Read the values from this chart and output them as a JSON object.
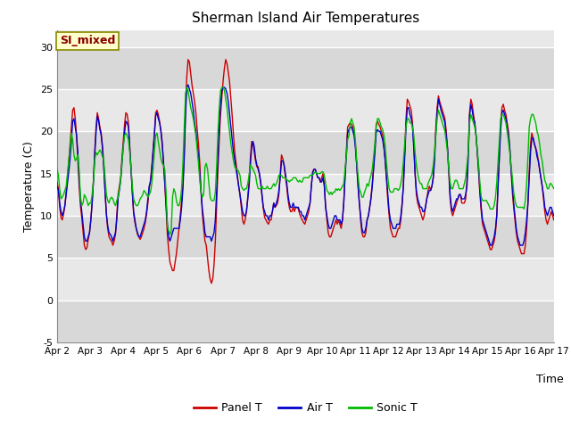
{
  "title": "Sherman Island Air Temperatures",
  "xlabel": "Time",
  "ylabel": "Temperature (C)",
  "ylim": [
    -5,
    32
  ],
  "yticks": [
    -5,
    0,
    5,
    10,
    15,
    20,
    25,
    30
  ],
  "xlim": [
    0,
    360
  ],
  "xtick_labels": [
    "Apr 2",
    "Apr 3",
    "Apr 4",
    "Apr 5",
    "Apr 6",
    "Apr 7",
    "Apr 8",
    "Apr 9",
    "Apr 10",
    "Apr 11",
    "Apr 12",
    "Apr 13",
    "Apr 14",
    "Apr 15",
    "Apr 16",
    "Apr 17"
  ],
  "xtick_positions": [
    0,
    24,
    48,
    72,
    96,
    120,
    144,
    168,
    192,
    216,
    240,
    264,
    288,
    312,
    336,
    360
  ],
  "colors": {
    "panel_t": "#cc0000",
    "air_t": "#0000cc",
    "sonic_t": "#00bb00",
    "bg_light": "#e8e8e8",
    "bg_dark": "#d0d0d0",
    "grid_line": "#ffffff",
    "annotation_bg": "#ffffcc",
    "annotation_border": "#888800",
    "annotation_text": "#880000"
  },
  "annotation": "SI_mixed",
  "legend_labels": [
    "Panel T",
    "Air T",
    "Sonic T"
  ],
  "panel_t": [
    14.0,
    13.2,
    11.0,
    9.8,
    9.5,
    10.2,
    11.2,
    12.8,
    14.5,
    16.5,
    18.5,
    20.5,
    22.5,
    22.8,
    21.5,
    19.5,
    16.5,
    13.5,
    11.2,
    9.8,
    8.2,
    6.5,
    6.0,
    6.2,
    7.2,
    8.0,
    9.5,
    11.5,
    14.2,
    17.5,
    20.5,
    22.2,
    21.5,
    20.5,
    19.8,
    18.2,
    15.8,
    12.8,
    10.2,
    8.5,
    7.5,
    7.2,
    7.0,
    6.5,
    7.0,
    7.8,
    10.0,
    12.5,
    13.5,
    14.5,
    16.8,
    18.8,
    20.8,
    22.2,
    22.0,
    21.0,
    18.2,
    15.5,
    12.8,
    10.2,
    9.2,
    8.5,
    7.8,
    7.5,
    7.2,
    7.5,
    8.0,
    8.5,
    9.2,
    10.2,
    11.5,
    13.2,
    14.2,
    15.8,
    17.8,
    19.8,
    22.2,
    22.5,
    22.0,
    21.2,
    20.2,
    18.8,
    16.2,
    13.8,
    11.0,
    7.8,
    6.0,
    4.5,
    4.0,
    3.5,
    3.5,
    4.5,
    5.5,
    7.0,
    8.5,
    10.2,
    11.8,
    13.8,
    17.5,
    22.5,
    26.5,
    28.5,
    28.2,
    26.8,
    25.5,
    24.5,
    23.5,
    22.2,
    20.2,
    18.5,
    16.2,
    12.8,
    10.2,
    8.5,
    7.0,
    6.5,
    5.0,
    3.5,
    2.5,
    2.0,
    2.5,
    4.2,
    7.0,
    11.2,
    15.5,
    19.0,
    22.0,
    24.0,
    26.0,
    27.5,
    28.5,
    28.0,
    27.0,
    25.8,
    23.8,
    21.8,
    19.5,
    17.5,
    16.2,
    14.8,
    13.5,
    12.5,
    11.0,
    9.5,
    9.0,
    9.5,
    10.5,
    12.2,
    14.2,
    16.8,
    18.8,
    18.5,
    17.5,
    16.5,
    15.8,
    15.8,
    14.8,
    13.8,
    12.2,
    10.8,
    9.8,
    9.5,
    9.2,
    9.0,
    9.5,
    9.5,
    10.5,
    11.5,
    11.0,
    11.2,
    11.5,
    12.5,
    14.8,
    17.2,
    16.8,
    16.0,
    14.5,
    13.5,
    12.0,
    11.0,
    10.5,
    10.5,
    11.0,
    10.5,
    11.0,
    11.0,
    10.8,
    10.2,
    9.8,
    9.5,
    9.2,
    9.0,
    9.5,
    10.0,
    10.5,
    11.5,
    13.5,
    15.2,
    15.5,
    15.5,
    15.0,
    14.5,
    14.5,
    14.0,
    14.5,
    15.0,
    13.8,
    11.2,
    9.5,
    8.0,
    7.5,
    7.5,
    8.0,
    8.5,
    9.0,
    9.5,
    9.0,
    9.5,
    9.0,
    8.5,
    9.5,
    11.5,
    14.8,
    17.5,
    20.5,
    20.8,
    21.0,
    20.8,
    20.5,
    19.8,
    18.5,
    16.0,
    13.8,
    11.5,
    9.5,
    8.0,
    7.5,
    7.5,
    8.0,
    9.5,
    10.0,
    11.0,
    12.2,
    13.8,
    15.8,
    18.0,
    20.8,
    21.2,
    20.8,
    20.5,
    20.0,
    19.5,
    18.2,
    16.5,
    14.2,
    11.8,
    10.0,
    8.5,
    8.0,
    7.5,
    7.5,
    7.5,
    8.0,
    8.5,
    8.5,
    9.5,
    11.2,
    13.8,
    17.5,
    21.5,
    23.8,
    23.5,
    23.0,
    22.5,
    21.0,
    18.5,
    15.0,
    12.5,
    11.5,
    11.0,
    10.5,
    10.0,
    9.5,
    10.0,
    11.0,
    12.0,
    13.0,
    13.5,
    13.0,
    13.5,
    14.5,
    17.2,
    20.5,
    22.8,
    24.2,
    23.5,
    23.0,
    22.5,
    22.0,
    21.5,
    20.0,
    18.0,
    15.0,
    12.0,
    10.5,
    10.0,
    10.5,
    11.0,
    11.5,
    12.0,
    12.5,
    12.5,
    11.5,
    11.5,
    11.5,
    12.0,
    14.2,
    17.8,
    22.2,
    23.8,
    23.2,
    22.0,
    21.0,
    19.5,
    17.5,
    15.0,
    12.5,
    10.5,
    9.0,
    8.5,
    8.0,
    7.5,
    7.0,
    6.5,
    6.0,
    6.0,
    6.5,
    7.0,
    8.0,
    10.2,
    13.8,
    17.5,
    21.0,
    22.8,
    23.2,
    22.5,
    22.0,
    21.0,
    20.0,
    18.0,
    15.5,
    12.8,
    11.0,
    9.5,
    8.0,
    7.0,
    6.5,
    6.0,
    5.5,
    5.5,
    5.5,
    6.5,
    8.5,
    11.5,
    15.2,
    18.5,
    19.8,
    19.2,
    18.5,
    18.0,
    17.5,
    16.5,
    15.5,
    14.5,
    13.5,
    12.0,
    10.5,
    9.5,
    9.0,
    9.5,
    10.0,
    10.5,
    10.0,
    9.5
  ],
  "air_t": [
    13.5,
    13.0,
    11.5,
    10.5,
    10.0,
    10.5,
    11.2,
    12.5,
    13.8,
    15.2,
    16.8,
    18.8,
    21.2,
    21.5,
    20.5,
    19.5,
    17.5,
    14.5,
    12.0,
    10.5,
    9.0,
    7.5,
    7.0,
    7.0,
    7.5,
    8.0,
    9.5,
    11.5,
    14.0,
    17.2,
    19.8,
    21.8,
    21.2,
    20.2,
    19.5,
    18.0,
    15.8,
    12.8,
    10.2,
    8.8,
    8.0,
    7.8,
    7.5,
    7.0,
    7.5,
    8.0,
    9.5,
    12.0,
    13.0,
    14.2,
    16.2,
    18.2,
    19.8,
    21.2,
    21.0,
    20.5,
    18.0,
    15.5,
    12.8,
    10.5,
    9.5,
    8.5,
    8.0,
    7.5,
    7.5,
    8.0,
    8.5,
    9.0,
    9.5,
    10.5,
    12.0,
    13.5,
    14.0,
    15.5,
    17.5,
    19.5,
    21.8,
    22.2,
    21.5,
    21.0,
    20.0,
    18.5,
    16.5,
    14.0,
    11.5,
    9.0,
    7.5,
    7.0,
    7.5,
    8.0,
    8.5,
    8.5,
    8.5,
    8.5,
    8.5,
    9.5,
    11.0,
    13.2,
    16.8,
    21.8,
    25.2,
    25.5,
    25.0,
    24.5,
    23.5,
    22.5,
    21.0,
    20.0,
    18.5,
    17.0,
    15.0,
    12.8,
    10.8,
    9.5,
    8.0,
    7.5,
    7.5,
    7.5,
    7.5,
    7.0,
    7.5,
    8.0,
    9.5,
    13.0,
    17.0,
    20.5,
    23.2,
    24.8,
    25.2,
    25.2,
    25.0,
    24.5,
    23.5,
    22.0,
    20.5,
    19.0,
    17.5,
    16.5,
    15.5,
    14.5,
    13.5,
    12.5,
    11.5,
    10.5,
    10.0,
    10.0,
    10.5,
    12.0,
    13.5,
    16.0,
    18.2,
    18.8,
    18.2,
    16.8,
    16.0,
    15.5,
    15.0,
    14.0,
    12.5,
    11.0,
    10.5,
    10.0,
    10.0,
    9.5,
    10.0,
    10.0,
    10.5,
    11.5,
    11.0,
    11.5,
    12.0,
    13.0,
    14.5,
    16.5,
    16.5,
    16.0,
    15.0,
    14.0,
    12.5,
    11.5,
    11.0,
    11.0,
    11.5,
    11.0,
    11.0,
    11.0,
    11.0,
    10.5,
    10.5,
    10.0,
    10.0,
    9.5,
    10.0,
    10.5,
    11.0,
    11.5,
    13.5,
    15.0,
    15.5,
    15.5,
    15.0,
    14.5,
    14.5,
    14.0,
    14.0,
    14.5,
    13.5,
    11.0,
    10.0,
    9.0,
    8.5,
    8.5,
    9.0,
    9.5,
    10.0,
    10.0,
    9.5,
    9.5,
    9.5,
    9.0,
    9.5,
    11.5,
    14.5,
    17.2,
    19.8,
    20.2,
    20.5,
    20.5,
    20.0,
    19.5,
    18.0,
    16.0,
    13.5,
    11.5,
    10.0,
    8.5,
    8.0,
    8.0,
    8.5,
    9.5,
    10.0,
    11.0,
    12.0,
    13.5,
    15.5,
    17.5,
    19.8,
    20.2,
    20.0,
    20.0,
    19.5,
    19.0,
    18.0,
    16.5,
    14.5,
    12.5,
    10.5,
    9.5,
    9.0,
    8.5,
    8.5,
    8.5,
    9.0,
    9.0,
    9.0,
    10.0,
    11.5,
    13.5,
    17.0,
    20.5,
    22.8,
    22.8,
    22.0,
    21.5,
    20.5,
    18.0,
    15.0,
    13.0,
    12.0,
    11.5,
    11.0,
    11.0,
    10.5,
    10.5,
    11.0,
    12.0,
    12.5,
    13.0,
    13.0,
    13.5,
    14.5,
    16.5,
    19.8,
    22.2,
    23.8,
    23.2,
    22.5,
    22.0,
    21.5,
    21.0,
    19.5,
    18.0,
    15.5,
    12.5,
    11.0,
    10.5,
    11.0,
    11.5,
    12.0,
    12.0,
    12.5,
    12.5,
    12.0,
    12.0,
    12.0,
    12.5,
    13.5,
    17.0,
    21.8,
    23.2,
    22.5,
    21.5,
    21.0,
    19.5,
    17.5,
    15.5,
    13.0,
    11.0,
    9.5,
    9.0,
    8.5,
    8.0,
    7.5,
    7.0,
    6.5,
    6.5,
    7.0,
    7.5,
    8.5,
    10.0,
    13.5,
    17.0,
    20.2,
    22.2,
    22.5,
    22.0,
    21.5,
    20.5,
    19.5,
    18.0,
    15.5,
    13.5,
    11.5,
    10.0,
    8.5,
    7.5,
    7.0,
    6.5,
    6.5,
    6.5,
    7.0,
    8.0,
    9.5,
    11.5,
    14.5,
    17.5,
    19.2,
    19.2,
    18.5,
    18.0,
    17.0,
    16.5,
    15.5,
    14.5,
    13.5,
    12.5,
    11.0,
    10.5,
    10.0,
    10.5,
    11.0,
    11.0,
    10.5,
    10.0
  ],
  "sonic_t": [
    15.5,
    14.8,
    13.2,
    12.0,
    12.2,
    12.5,
    13.0,
    13.5,
    15.0,
    16.5,
    18.0,
    19.8,
    19.0,
    17.2,
    16.5,
    16.8,
    17.2,
    15.5,
    12.2,
    11.2,
    11.5,
    12.5,
    12.2,
    11.8,
    11.2,
    11.5,
    11.5,
    12.5,
    14.0,
    16.5,
    17.5,
    17.2,
    17.5,
    17.8,
    17.5,
    17.0,
    16.5,
    14.5,
    12.5,
    11.8,
    11.5,
    12.0,
    12.2,
    12.0,
    11.5,
    11.2,
    11.8,
    12.2,
    13.2,
    14.2,
    16.2,
    18.2,
    19.5,
    19.8,
    19.5,
    19.0,
    17.5,
    15.8,
    13.5,
    12.0,
    11.5,
    11.2,
    11.2,
    11.5,
    12.0,
    12.2,
    12.5,
    13.0,
    12.8,
    12.5,
    12.2,
    12.5,
    12.8,
    13.8,
    15.5,
    17.5,
    19.5,
    19.8,
    18.8,
    17.8,
    16.8,
    16.2,
    16.0,
    15.5,
    12.8,
    8.8,
    8.2,
    7.8,
    8.2,
    12.2,
    13.2,
    12.8,
    11.8,
    11.2,
    11.2,
    11.8,
    13.2,
    16.2,
    20.5,
    24.5,
    25.2,
    24.8,
    23.8,
    22.8,
    22.2,
    21.5,
    20.5,
    19.5,
    17.8,
    16.2,
    14.2,
    12.8,
    12.2,
    12.5,
    15.8,
    16.2,
    15.5,
    13.8,
    12.2,
    11.8,
    11.8,
    11.8,
    12.8,
    15.8,
    19.8,
    22.8,
    24.8,
    25.2,
    25.2,
    24.8,
    23.8,
    22.8,
    21.2,
    19.8,
    18.5,
    17.5,
    16.5,
    15.8,
    15.5,
    15.5,
    15.2,
    14.8,
    13.5,
    13.2,
    13.0,
    13.2,
    13.2,
    13.8,
    14.8,
    16.0,
    15.8,
    15.5,
    15.2,
    14.8,
    13.8,
    13.2,
    13.2,
    13.2,
    13.5,
    13.2,
    13.2,
    13.2,
    13.5,
    13.2,
    13.2,
    13.2,
    13.5,
    13.8,
    13.5,
    13.8,
    14.2,
    14.8,
    14.8,
    14.8,
    14.5,
    14.5,
    14.5,
    14.2,
    14.2,
    14.0,
    14.2,
    14.2,
    14.5,
    14.5,
    14.5,
    14.2,
    14.0,
    14.2,
    14.0,
    14.0,
    14.5,
    14.5,
    14.5,
    14.5,
    14.5,
    14.8,
    14.8,
    14.8,
    15.0,
    15.2,
    15.0,
    15.0,
    15.0,
    15.0,
    15.2,
    15.2,
    14.8,
    13.8,
    13.0,
    12.8,
    12.5,
    12.8,
    12.5,
    12.8,
    12.8,
    13.2,
    13.0,
    13.2,
    13.0,
    13.2,
    13.5,
    13.8,
    15.5,
    17.0,
    19.0,
    19.5,
    21.0,
    21.5,
    21.0,
    20.5,
    18.8,
    16.5,
    14.8,
    13.2,
    12.8,
    12.2,
    12.2,
    12.8,
    13.2,
    13.8,
    13.5,
    14.2,
    14.8,
    15.5,
    17.0,
    18.5,
    20.5,
    21.5,
    21.5,
    21.0,
    20.5,
    20.2,
    19.5,
    18.2,
    16.2,
    14.5,
    13.2,
    12.8,
    12.8,
    12.8,
    13.2,
    13.2,
    13.2,
    13.0,
    13.2,
    13.8,
    14.8,
    16.5,
    18.5,
    20.5,
    21.5,
    21.5,
    21.0,
    21.0,
    20.5,
    19.5,
    17.5,
    16.0,
    15.0,
    14.2,
    13.8,
    13.8,
    13.2,
    13.2,
    13.2,
    13.2,
    13.8,
    14.2,
    14.5,
    15.0,
    16.0,
    17.5,
    19.5,
    21.5,
    22.5,
    22.0,
    21.5,
    21.0,
    20.5,
    20.0,
    18.8,
    17.5,
    15.5,
    14.0,
    13.2,
    13.2,
    13.8,
    14.2,
    14.2,
    13.8,
    13.2,
    13.2,
    13.2,
    13.2,
    13.8,
    14.5,
    16.0,
    17.5,
    21.0,
    22.0,
    21.5,
    21.0,
    20.5,
    19.5,
    17.8,
    16.0,
    13.8,
    12.2,
    11.8,
    11.8,
    11.8,
    11.8,
    11.5,
    11.2,
    10.8,
    10.8,
    10.8,
    11.2,
    12.2,
    14.0,
    16.5,
    19.0,
    21.5,
    22.0,
    22.0,
    21.5,
    21.0,
    20.0,
    18.8,
    17.5,
    16.0,
    14.5,
    12.8,
    11.8,
    11.2,
    11.0,
    11.0,
    11.0,
    11.0,
    11.0,
    10.8,
    11.8,
    13.8,
    17.0,
    20.5,
    21.5,
    22.0,
    22.0,
    21.5,
    21.0,
    20.0,
    19.5,
    18.5,
    17.2,
    16.5,
    15.2,
    14.2,
    13.8,
    13.2,
    13.2,
    13.8,
    13.8,
    13.5,
    13.2
  ]
}
